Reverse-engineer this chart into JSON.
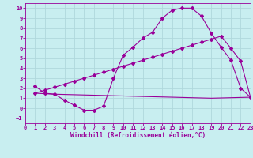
{
  "xlabel": "Windchill (Refroidissement éolien,°C)",
  "background_color": "#c8eef0",
  "grid_color": "#b0d8dc",
  "line_color": "#990099",
  "xlim": [
    0,
    23
  ],
  "ylim": [
    -1.5,
    10.5
  ],
  "xticks": [
    0,
    1,
    2,
    3,
    4,
    5,
    6,
    7,
    8,
    9,
    10,
    11,
    12,
    13,
    14,
    15,
    16,
    17,
    18,
    19,
    20,
    21,
    22,
    23
  ],
  "yticks": [
    -1,
    0,
    1,
    2,
    3,
    4,
    5,
    6,
    7,
    8,
    9,
    10
  ],
  "curve1_x": [
    1,
    2,
    3,
    4,
    5,
    6,
    7,
    8,
    9,
    10,
    11,
    12,
    13,
    14,
    15,
    16,
    17,
    18,
    19,
    20,
    21,
    22,
    23
  ],
  "curve1_y": [
    2.2,
    1.5,
    1.4,
    0.8,
    0.3,
    -0.2,
    -0.2,
    0.2,
    3.0,
    5.3,
    6.1,
    7.0,
    7.6,
    9.0,
    9.8,
    10.0,
    10.0,
    9.2,
    7.5,
    6.1,
    4.8,
    2.0,
    1.1
  ],
  "curve2_x": [
    1,
    3,
    19,
    23
  ],
  "curve2_y": [
    1.5,
    1.4,
    1.0,
    1.1
  ],
  "curve3_x": [
    1,
    2,
    3,
    4,
    5,
    6,
    7,
    8,
    9,
    10,
    11,
    12,
    13,
    14,
    15,
    16,
    17,
    18,
    19,
    20,
    21,
    22,
    23
  ],
  "curve3_y": [
    1.5,
    1.8,
    2.1,
    2.4,
    2.7,
    3.0,
    3.3,
    3.6,
    3.9,
    4.2,
    4.5,
    4.8,
    5.1,
    5.4,
    5.7,
    6.0,
    6.3,
    6.6,
    6.9,
    7.2,
    6.0,
    4.7,
    1.1
  ],
  "tick_fontsize": 5.0,
  "xlabel_fontsize": 5.5
}
